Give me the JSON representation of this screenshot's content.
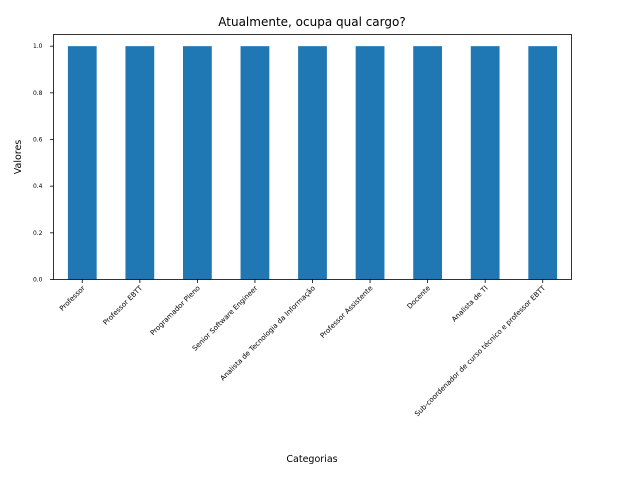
{
  "chart_data": {
    "type": "bar",
    "title": "Atualmente, ocupa qual cargo?",
    "xlabel": "Categorias",
    "ylabel": "Valores",
    "categories": [
      "Professor",
      "Professor EBTT",
      "Programador Pleno",
      "Senior Software Engineer",
      "Analista de Tecnologia da Informação",
      "Professor Assistente",
      "Docente",
      "Analista de TI",
      "Sub-coordenador de curso técnico e professor EBTT"
    ],
    "values": [
      1,
      1,
      1,
      1,
      1,
      1,
      1,
      1,
      1
    ],
    "ylim": [
      0,
      1.05
    ],
    "yticks": [
      "0.0",
      "0.2",
      "0.4",
      "0.6",
      "0.8",
      "1.0"
    ],
    "grid": false,
    "bar_color": "#1f77b4"
  }
}
